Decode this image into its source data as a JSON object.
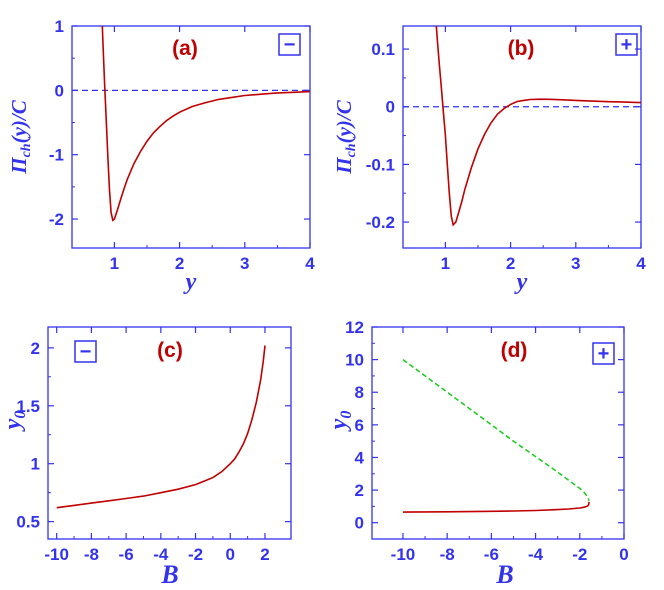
{
  "colors": {
    "axis": "#3333ee",
    "curve": "#c00000",
    "zero_line": "#3333ee",
    "dashed_branch": "#22cc22",
    "panel_label": "#c00000"
  },
  "chart_data": [
    {
      "id": "a",
      "type": "line",
      "panel_label": "(a)",
      "sign": "−",
      "xlabel": "y",
      "ylabel": "Π_ch(y)/C",
      "xlim": [
        0.35,
        4.0
      ],
      "ylim": [
        -2.45,
        1.0
      ],
      "xticks": [
        1,
        2,
        3,
        4
      ],
      "xtick_labels": [
        "1",
        "2",
        "3",
        "4"
      ],
      "yticks": [
        1,
        0,
        -1,
        -2
      ],
      "ytick_labels": [
        "1",
        "0",
        "-1",
        "-2"
      ],
      "zero_line": true,
      "series": [
        {
          "style": "solid",
          "x": [
            0.815,
            0.83,
            0.85,
            0.875,
            0.9,
            0.925,
            0.95,
            0.975,
            1.0,
            1.05,
            1.1,
            1.15,
            1.2,
            1.3,
            1.4,
            1.5,
            1.6,
            1.7,
            1.8,
            1.9,
            2.0,
            2.2,
            2.4,
            2.6,
            2.8,
            3.0,
            3.25,
            3.5,
            3.75,
            4.0
          ],
          "y": [
            1.0,
            0.6,
            0.1,
            -0.45,
            -1.05,
            -1.55,
            -1.9,
            -2.02,
            -2.0,
            -1.85,
            -1.68,
            -1.52,
            -1.38,
            -1.14,
            -0.95,
            -0.79,
            -0.66,
            -0.56,
            -0.47,
            -0.4,
            -0.34,
            -0.25,
            -0.19,
            -0.14,
            -0.11,
            -0.08,
            -0.06,
            -0.04,
            -0.03,
            -0.02
          ]
        }
      ]
    },
    {
      "id": "b",
      "type": "line",
      "panel_label": "(b)",
      "sign": "+",
      "xlabel": "y",
      "ylabel": "Π_ch(y)/C",
      "xlim": [
        0.35,
        4.0
      ],
      "ylim": [
        -0.245,
        0.14
      ],
      "xticks": [
        1,
        2,
        3,
        4
      ],
      "xtick_labels": [
        "1",
        "2",
        "3",
        "4"
      ],
      "yticks": [
        0.1,
        0,
        -0.1,
        -0.2
      ],
      "ytick_labels": [
        "0.1",
        "0",
        "-0.1",
        "-0.2"
      ],
      "zero_line": true,
      "series": [
        {
          "style": "solid",
          "x": [
            0.86,
            0.88,
            0.91,
            0.94,
            0.97,
            1.0,
            1.03,
            1.06,
            1.09,
            1.12,
            1.16,
            1.2,
            1.25,
            1.3,
            1.4,
            1.5,
            1.6,
            1.7,
            1.8,
            1.9,
            2.0,
            2.1,
            2.2,
            2.3,
            2.45,
            2.6,
            2.8,
            3.0,
            3.25,
            3.5,
            3.75,
            4.0
          ],
          "y": [
            0.14,
            0.11,
            0.07,
            0.03,
            -0.01,
            -0.05,
            -0.1,
            -0.15,
            -0.19,
            -0.205,
            -0.2,
            -0.185,
            -0.165,
            -0.143,
            -0.105,
            -0.073,
            -0.048,
            -0.028,
            -0.013,
            -0.003,
            0.004,
            0.009,
            0.011,
            0.0125,
            0.013,
            0.0128,
            0.012,
            0.011,
            0.0098,
            0.0088,
            0.008,
            0.0072
          ]
        }
      ]
    },
    {
      "id": "c",
      "type": "line",
      "panel_label": "(c)",
      "sign": "−",
      "xlabel": "B",
      "ylabel": "y_0",
      "xlim": [
        -10.5,
        3.5
      ],
      "ylim": [
        0.35,
        2.18
      ],
      "xticks": [
        -10,
        -8,
        -6,
        -4,
        -2,
        0,
        2
      ],
      "xtick_labels": [
        "-10",
        "-8",
        "-6",
        "-4",
        "-2",
        "0",
        "2"
      ],
      "yticks": [
        0.5,
        1,
        1.5,
        2
      ],
      "ytick_labels": [
        "0.5",
        "1",
        "1.5",
        "2"
      ],
      "zero_line": false,
      "series": [
        {
          "style": "solid",
          "x": [
            -10,
            -9,
            -8,
            -7,
            -6,
            -5,
            -4,
            -3,
            -2,
            -1.5,
            -1,
            -0.5,
            0,
            0.25,
            0.5,
            0.75,
            1.0,
            1.25,
            1.5,
            1.75,
            1.9,
            2.0
          ],
          "y": [
            0.62,
            0.64,
            0.66,
            0.68,
            0.7,
            0.72,
            0.75,
            0.78,
            0.82,
            0.85,
            0.88,
            0.93,
            1.0,
            1.04,
            1.1,
            1.17,
            1.26,
            1.38,
            1.53,
            1.72,
            1.88,
            2.02
          ]
        }
      ]
    },
    {
      "id": "d",
      "type": "line",
      "panel_label": "(d)",
      "sign": "+",
      "xlabel": "B",
      "ylabel": "y_0",
      "xlim": [
        -11.4,
        0.0
      ],
      "ylim": [
        -1.0,
        12.0
      ],
      "xticks": [
        -10,
        -8,
        -6,
        -4,
        -2,
        0
      ],
      "xtick_labels": [
        "-10",
        "-8",
        "-6",
        "-4",
        "-2",
        "0"
      ],
      "yticks": [
        0,
        2,
        4,
        6,
        8,
        10,
        12
      ],
      "ytick_labels": [
        "0",
        "2",
        "4",
        "6",
        "8",
        "10",
        "12"
      ],
      "zero_line": false,
      "series": [
        {
          "style": "solid",
          "x": [
            -10,
            -9,
            -8,
            -7,
            -6,
            -5,
            -4,
            -3,
            -2.5,
            -2,
            -1.8,
            -1.65,
            -1.6,
            -1.58
          ],
          "y": [
            0.65,
            0.66,
            0.67,
            0.68,
            0.7,
            0.72,
            0.75,
            0.8,
            0.84,
            0.9,
            0.95,
            1.02,
            1.1,
            1.28
          ]
        },
        {
          "style": "dashed",
          "x": [
            -10,
            -9,
            -8,
            -7,
            -6,
            -5,
            -4,
            -3,
            -2.5,
            -2,
            -1.8,
            -1.65,
            -1.58
          ],
          "y": [
            10.0,
            9.0,
            8.0,
            7.0,
            6.0,
            5.0,
            4.05,
            3.1,
            2.6,
            2.1,
            1.85,
            1.6,
            1.35
          ]
        }
      ]
    }
  ]
}
